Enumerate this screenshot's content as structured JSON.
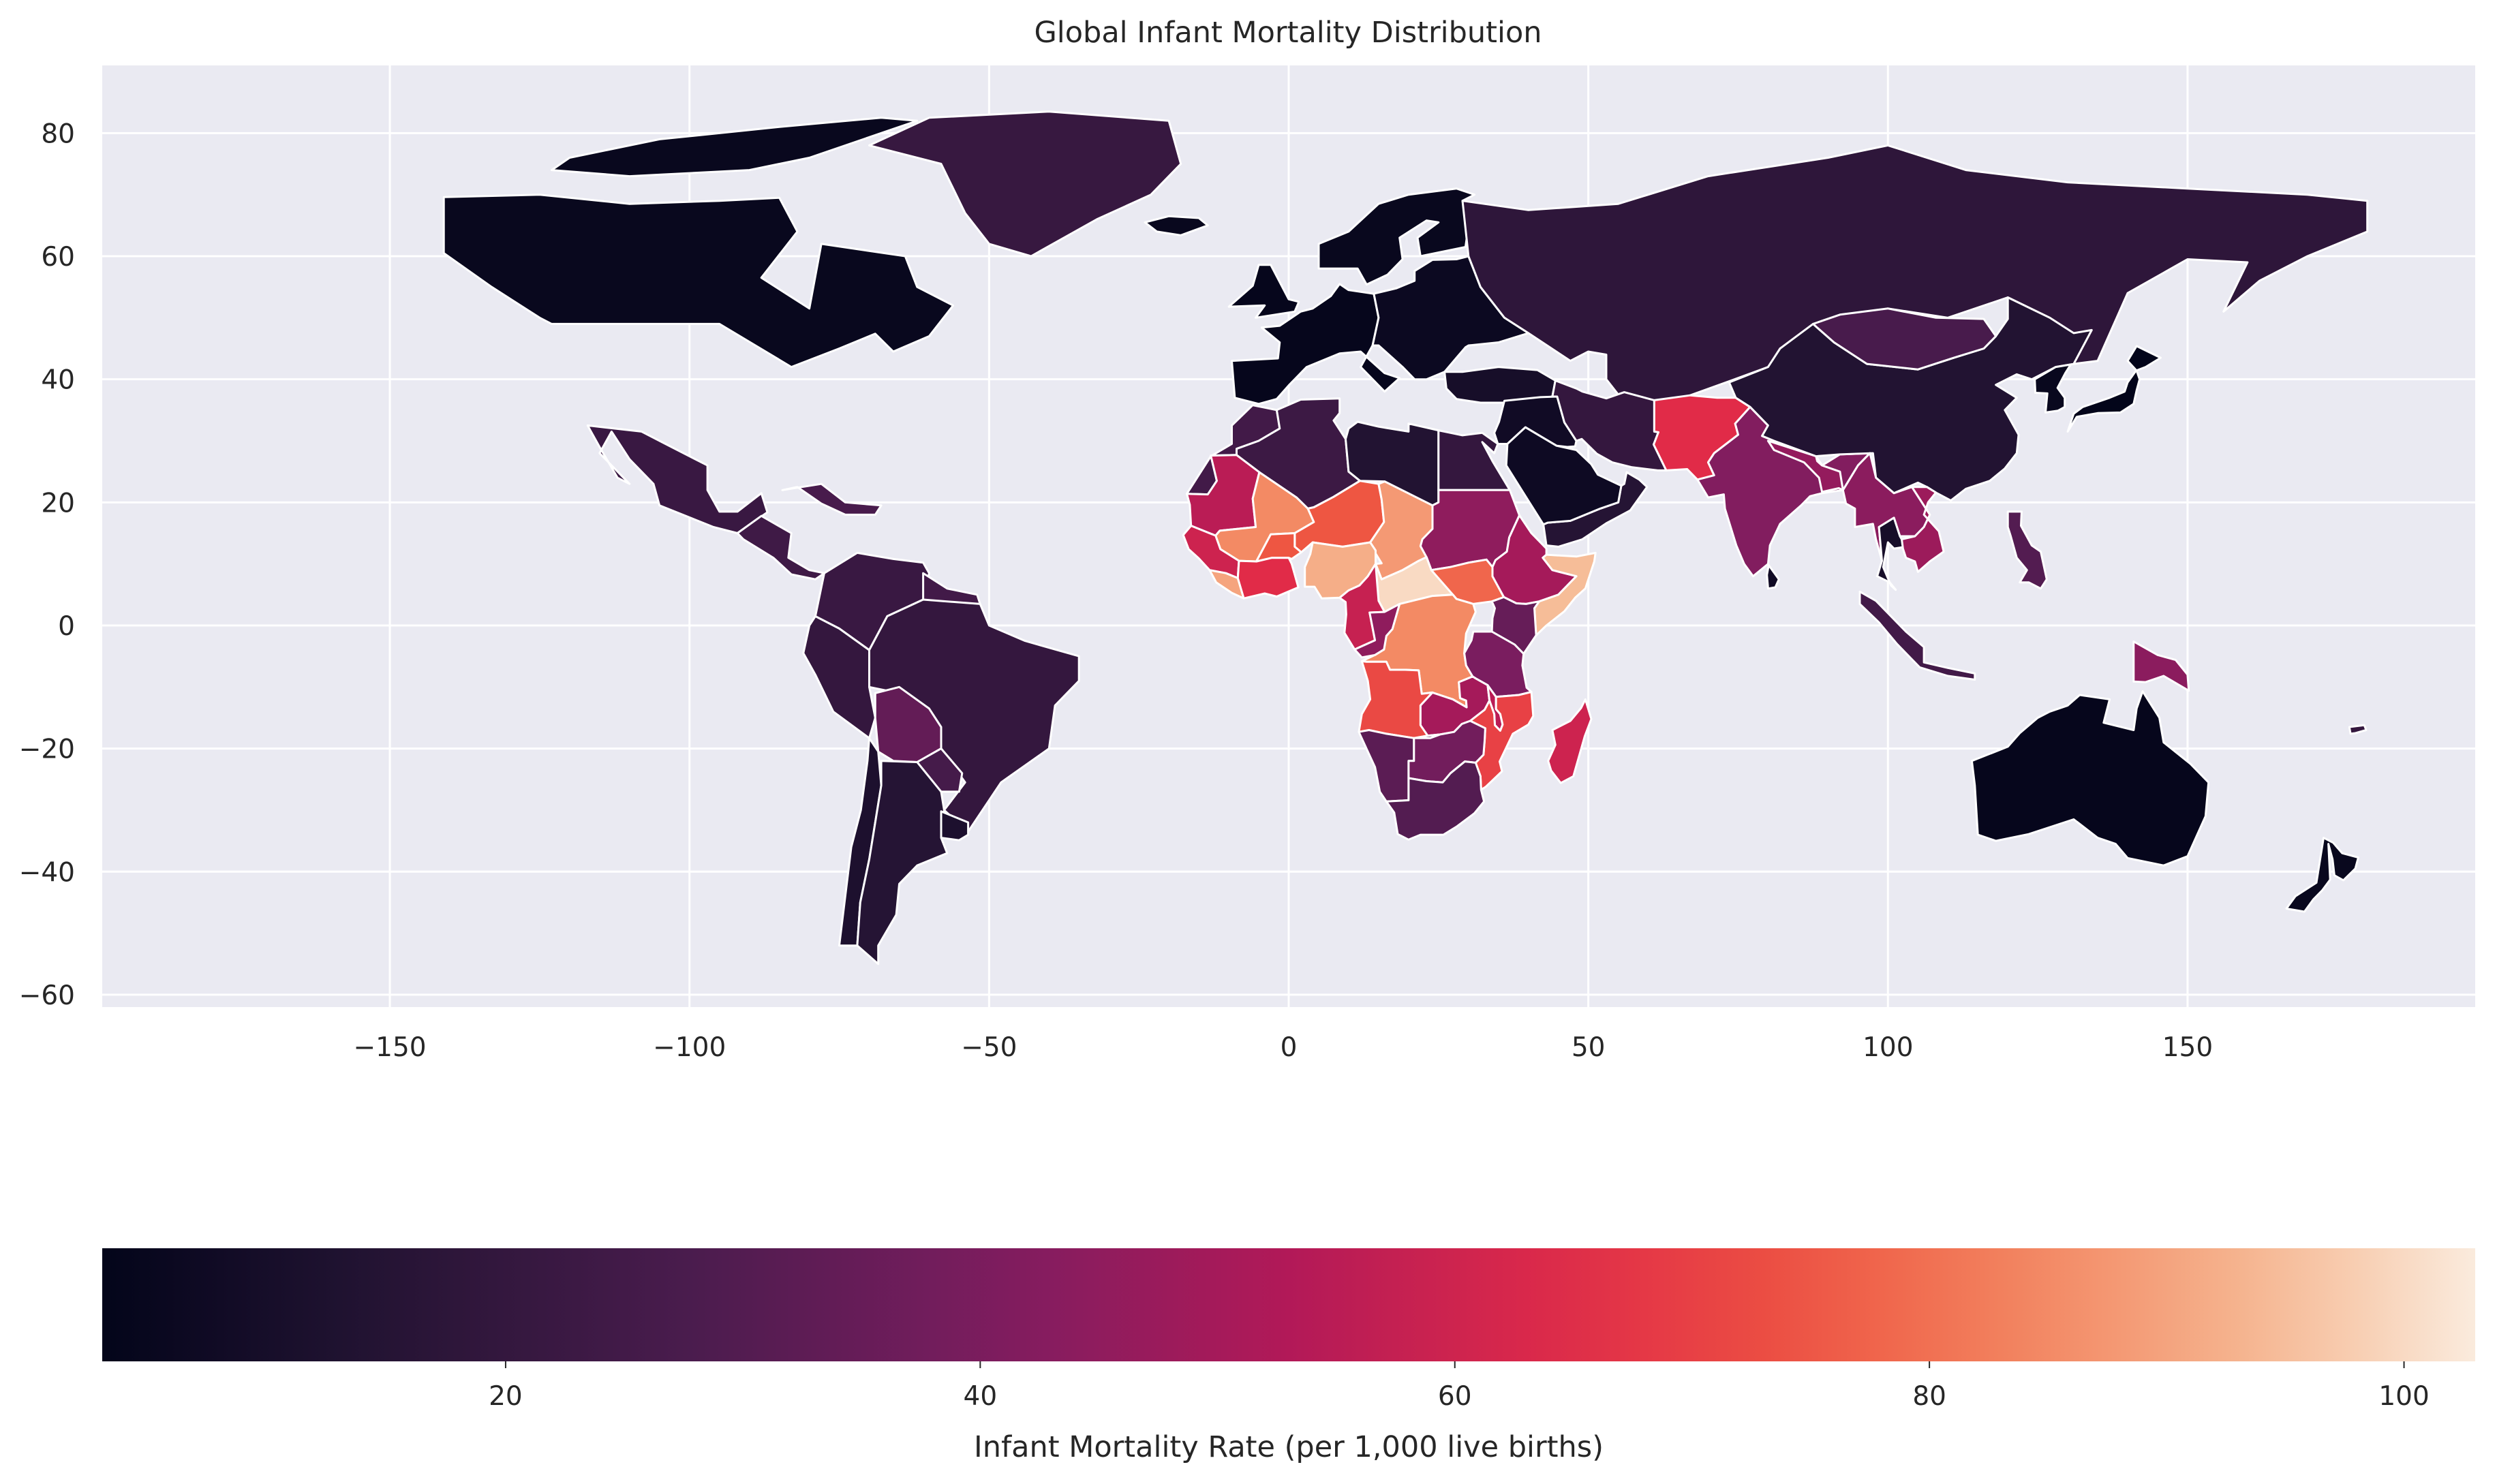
{
  "chart_data": {
    "type": "choropleth",
    "title": "Global Infant Mortality Distribution",
    "xlim": [
      -198,
      198
    ],
    "ylim": [
      -62,
      91
    ],
    "x_ticks": [
      -150,
      -100,
      -50,
      0,
      50,
      100,
      150
    ],
    "y_ticks": [
      -60,
      -40,
      -20,
      0,
      20,
      40,
      60,
      80
    ],
    "x_tick_labels": [
      "−150",
      "−100",
      "−50",
      "0",
      "50",
      "100",
      "150"
    ],
    "y_tick_labels": [
      "−60",
      "−40",
      "−20",
      "0",
      "20",
      "40",
      "60",
      "80"
    ],
    "grid": true,
    "colormap": "rocket",
    "colorbar": {
      "label": "Infant Mortality Rate (per 1,000 live births)",
      "range": [
        3,
        103
      ],
      "ticks": [
        20,
        40,
        60,
        80,
        100
      ],
      "tick_labels": [
        "20",
        "40",
        "60",
        "80",
        "100"
      ],
      "orientation": "horizontal"
    },
    "regions": [
      {
        "name": "Canada",
        "value": 5
      },
      {
        "name": "Greenland",
        "value": 21
      },
      {
        "name": "Arctic islands",
        "value": 5
      },
      {
        "name": "Mexico",
        "value": 22
      },
      {
        "name": "Central America",
        "value": 24
      },
      {
        "name": "Caribbean",
        "value": 27
      },
      {
        "name": "Colombia/Venezuela",
        "value": 22
      },
      {
        "name": "Ecuador/Peru",
        "value": 20
      },
      {
        "name": "Guianas",
        "value": 25
      },
      {
        "name": "Brazil",
        "value": 20
      },
      {
        "name": "Bolivia",
        "value": 34
      },
      {
        "name": "Paraguay",
        "value": 26
      },
      {
        "name": "Chile",
        "value": 12
      },
      {
        "name": "Argentina",
        "value": 15
      },
      {
        "name": "Uruguay",
        "value": 12
      },
      {
        "name": "Iceland",
        "value": 5
      },
      {
        "name": "UK/Ireland",
        "value": 4
      },
      {
        "name": "Western Europe",
        "value": 4
      },
      {
        "name": "Scandinavia",
        "value": 5
      },
      {
        "name": "Eastern Europe",
        "value": 6
      },
      {
        "name": "Russia/Central Asia",
        "value": 18
      },
      {
        "name": "Turkey",
        "value": 10
      },
      {
        "name": "Middle East",
        "value": 8
      },
      {
        "name": "Iran",
        "value": 20
      },
      {
        "name": "Afghanistan/Pakistan",
        "value": 65
      },
      {
        "name": "India",
        "value": 42
      },
      {
        "name": "Nepal/Bangladesh",
        "value": 46
      },
      {
        "name": "China",
        "value": 14
      },
      {
        "name": "Mongolia",
        "value": 27
      },
      {
        "name": "Myanmar/Laos",
        "value": 44
      },
      {
        "name": "Thailand/Vietnam",
        "value": 10
      },
      {
        "name": "Cambodia",
        "value": 48
      },
      {
        "name": "Japan",
        "value": 3
      },
      {
        "name": "Korea",
        "value": 5
      },
      {
        "name": "Philippines",
        "value": 30
      },
      {
        "name": "Indonesia",
        "value": 25
      },
      {
        "name": "Papua New Guinea",
        "value": 44
      },
      {
        "name": "Australia",
        "value": 4
      },
      {
        "name": "New Zealand",
        "value": 5
      },
      {
        "name": "Sri Lanka",
        "value": 8
      },
      {
        "name": "Morocco/W. Sahara",
        "value": 25
      },
      {
        "name": "Algeria",
        "value": 23
      },
      {
        "name": "Libya",
        "value": 14
      },
      {
        "name": "Egypt",
        "value": 20
      },
      {
        "name": "Mauritania",
        "value": 55
      },
      {
        "name": "Mali",
        "value": 85
      },
      {
        "name": "Niger",
        "value": 75
      },
      {
        "name": "Chad",
        "value": 88
      },
      {
        "name": "Sudan",
        "value": 45
      },
      {
        "name": "Senegal/Guinea",
        "value": 60
      },
      {
        "name": "Sierra Leone/Liberia",
        "value": 90
      },
      {
        "name": "Ghana/Ivory Coast",
        "value": 65
      },
      {
        "name": "Burkina Faso",
        "value": 75
      },
      {
        "name": "Nigeria",
        "value": 92
      },
      {
        "name": "Central African Rep.",
        "value": 100
      },
      {
        "name": "South Sudan",
        "value": 78
      },
      {
        "name": "Ethiopia",
        "value": 50
      },
      {
        "name": "Somalia",
        "value": 95
      },
      {
        "name": "Kenya",
        "value": 35
      },
      {
        "name": "Gabon/Cameroon",
        "value": 58
      },
      {
        "name": "DR Congo",
        "value": 85
      },
      {
        "name": "Congo",
        "value": 45
      },
      {
        "name": "Tanzania",
        "value": 40
      },
      {
        "name": "Angola",
        "value": 72
      },
      {
        "name": "Zambia",
        "value": 50
      },
      {
        "name": "Malawi",
        "value": 55
      },
      {
        "name": "Mozambique",
        "value": 70
      },
      {
        "name": "Madagascar",
        "value": 60
      },
      {
        "name": "Namibia",
        "value": 32
      },
      {
        "name": "Botswana/Zimbabwe",
        "value": 38
      },
      {
        "name": "South Africa",
        "value": 30
      },
      {
        "name": "Yemen/Oman",
        "value": 15
      },
      {
        "name": "Saudi Arabia",
        "value": 7
      },
      {
        "name": "Pacific islands",
        "value": 20
      }
    ]
  }
}
